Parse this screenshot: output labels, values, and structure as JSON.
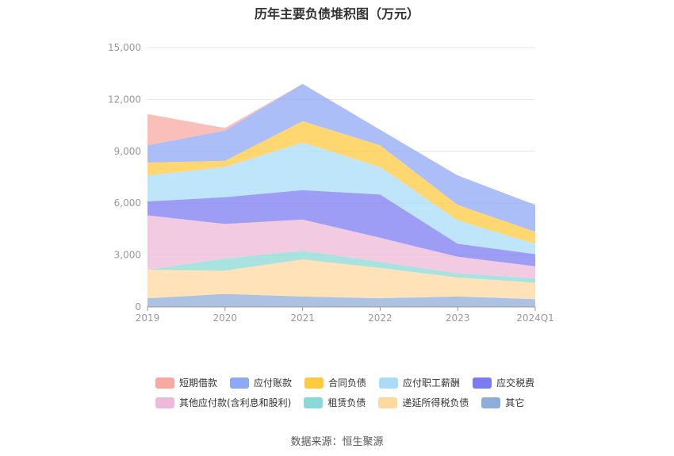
{
  "title": "历年主要负债堆积图（万元）",
  "source": "数据来源：恒生聚源",
  "chart_data": {
    "type": "area",
    "stacked": true,
    "title": "历年主要负债堆积图（万元）",
    "x": [
      "2019",
      "2020",
      "2021",
      "2022",
      "2023",
      "2024Q1"
    ],
    "ylim": [
      0,
      15000
    ],
    "yticks": [
      "0",
      "3,000",
      "6,000",
      "9,000",
      "12,000",
      "15,000"
    ],
    "grid": true,
    "legend_position": "bottom",
    "series": [
      {
        "name": "其它",
        "color": "#8fadd9",
        "values": [
          500,
          750,
          600,
          500,
          600,
          450
        ]
      },
      {
        "name": "递延所得税负债",
        "color": "#ffd8a0",
        "values": [
          1650,
          1350,
          2150,
          1750,
          1100,
          950
        ]
      },
      {
        "name": "租赁负债",
        "color": "#8bd9d6",
        "values": [
          0,
          700,
          500,
          350,
          250,
          250
        ]
      },
      {
        "name": "其他应付款(含利息和股利)",
        "color": "#eebad9",
        "values": [
          3150,
          2000,
          1800,
          1400,
          950,
          700
        ]
      },
      {
        "name": "应交税费",
        "color": "#7c7cf2",
        "values": [
          800,
          1550,
          1700,
          2500,
          750,
          700
        ]
      },
      {
        "name": "应付职工薪酬",
        "color": "#a8dcf8",
        "values": [
          1500,
          1750,
          2750,
          1600,
          1350,
          600
        ]
      },
      {
        "name": "合同负债",
        "color": "#ffc940",
        "values": [
          750,
          350,
          1250,
          1250,
          900,
          700
        ]
      },
      {
        "name": "应付账款",
        "color": "#8fa8f5",
        "values": [
          1000,
          1750,
          2150,
          900,
          1700,
          1550
        ]
      },
      {
        "name": "短期借款",
        "color": "#f8a9a1",
        "values": [
          1800,
          150,
          0,
          0,
          0,
          0
        ]
      }
    ]
  },
  "legend": {
    "row1": [
      {
        "name": "短期借款",
        "color": "#f8a9a1"
      },
      {
        "name": "应付账款",
        "color": "#8fa8f5"
      },
      {
        "name": "合同负债",
        "color": "#ffc940"
      },
      {
        "name": "应付职工薪酬",
        "color": "#a8dcf8"
      },
      {
        "name": "应交税费",
        "color": "#7c7cf2"
      }
    ],
    "row2": [
      {
        "name": "其他应付款(含利息和股利)",
        "color": "#eebad9"
      },
      {
        "name": "租赁负债",
        "color": "#8bd9d6"
      },
      {
        "name": "递延所得税负债",
        "color": "#ffd8a0"
      },
      {
        "name": "其它",
        "color": "#8fadd9"
      }
    ]
  }
}
